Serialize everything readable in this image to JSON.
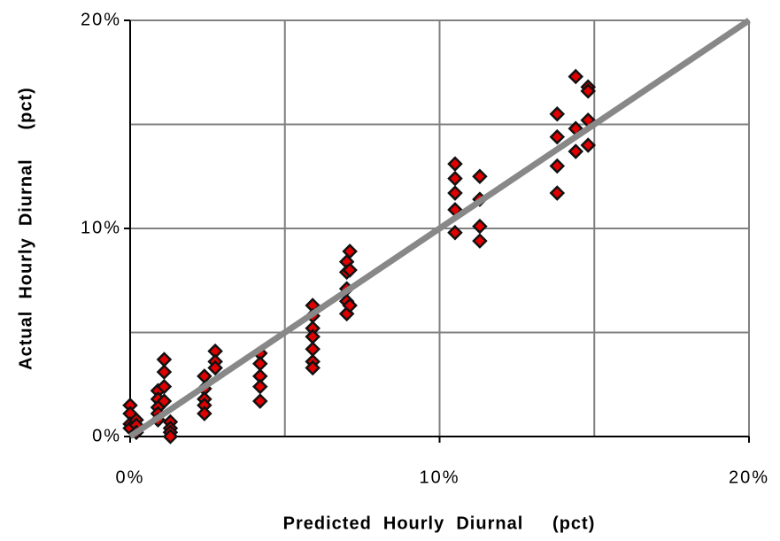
{
  "chart_data": {
    "type": "scatter",
    "xlabel": "Predicted  Hourly  Diurnal     (pct)",
    "ylabel": "Actual  Hourly  Diurnal     (pct)",
    "x": [
      0,
      0,
      0,
      0,
      0.2,
      0.2,
      0.2,
      0.9,
      0.9,
      0.9,
      0.9,
      0.9,
      1.1,
      1.1,
      1.1,
      1.1,
      1.3,
      1.3,
      1.3,
      1.3,
      2.4,
      2.4,
      2.4,
      2.4,
      2.4,
      2.75,
      2.75,
      2.75,
      4.2,
      4.2,
      4.2,
      4.2,
      4.2,
      5.9,
      5.9,
      5.9,
      5.9,
      5.9,
      5.9,
      5.9,
      7.0,
      7.0,
      7.0,
      7.0,
      7.0,
      7.1,
      7.1,
      7.1,
      10.5,
      10.5,
      10.5,
      10.5,
      10.5,
      11.3,
      11.3,
      11.3,
      11.3,
      13.8,
      13.8,
      13.8,
      13.8,
      14.4,
      14.4,
      14.4,
      14.8,
      14.8,
      14.8,
      14.8
    ],
    "values": [
      1.5,
      1.1,
      0.6,
      0.4,
      0.8,
      0.55,
      0.2,
      2.2,
      1.8,
      1.4,
      1.1,
      0.8,
      3.7,
      3.1,
      2.4,
      1.7,
      0.7,
      0.4,
      0.2,
      0.0,
      2.9,
      2.3,
      1.8,
      1.5,
      1.1,
      4.1,
      3.6,
      3.3,
      4.0,
      3.5,
      2.9,
      2.4,
      1.7,
      6.3,
      5.8,
      5.2,
      4.8,
      4.2,
      3.6,
      3.3,
      8.4,
      7.9,
      7.1,
      6.5,
      5.9,
      8.9,
      8.0,
      6.3,
      13.1,
      12.4,
      11.7,
      10.9,
      9.8,
      12.5,
      11.4,
      10.1,
      9.4,
      15.5,
      14.4,
      13.0,
      11.7,
      17.3,
      14.8,
      13.7,
      16.8,
      16.6,
      15.2,
      14.0
    ],
    "color": "#e00000",
    "edgecolor": "#111111",
    "reference_line": {
      "x": [
        0,
        20
      ],
      "values": [
        0,
        20
      ],
      "color": "#888888"
    },
    "xlim": [
      0,
      20
    ],
    "ylim": [
      0,
      20
    ],
    "xticks": [
      {
        "value": 0,
        "label": "0%"
      },
      {
        "value": 10,
        "label": "10%"
      },
      {
        "value": 20,
        "label": "20%"
      }
    ],
    "yticks": [
      {
        "value": 0,
        "label": "0%"
      },
      {
        "value": 10,
        "label": "10%"
      },
      {
        "value": 20,
        "label": "20%"
      }
    ],
    "minor_xticks": [
      5,
      15
    ],
    "minor_yticks": [
      5,
      15
    ],
    "grid": true
  }
}
